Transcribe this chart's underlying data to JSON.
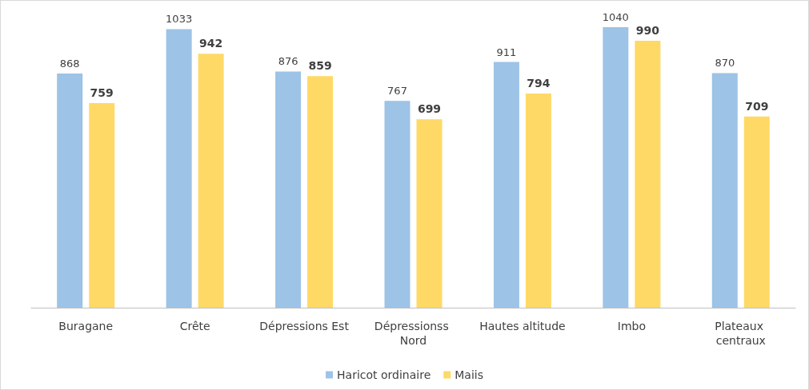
{
  "chart_data": {
    "type": "bar",
    "categories": [
      "Buragane",
      "Crête",
      "Dépressions Est",
      "Dépressionss Nord",
      "Hautes altitude",
      "Imbo",
      "Plateaux centraux"
    ],
    "series": [
      {
        "name": "Haricot ordinaire",
        "color": "#9dc3e6",
        "values": [
          868,
          1033,
          876,
          767,
          911,
          1040,
          870
        ]
      },
      {
        "name": "Maiis",
        "color": "#ffd966",
        "values": [
          759,
          942,
          859,
          699,
          794,
          990,
          709
        ]
      }
    ],
    "data_labels": true,
    "grid": false,
    "legend": "bottom"
  }
}
